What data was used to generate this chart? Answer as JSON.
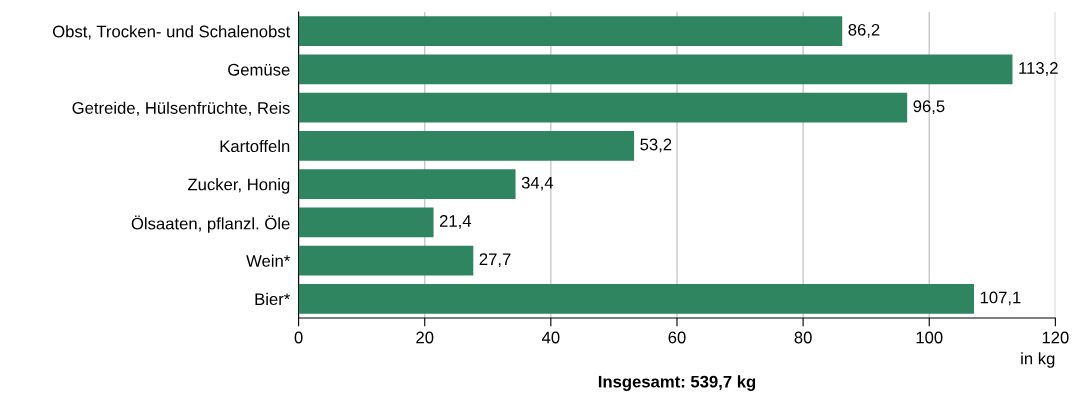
{
  "chart_data": {
    "type": "bar",
    "orientation": "horizontal",
    "categories": [
      "Obst, Trocken- und Schalenobst",
      "Gemüse",
      "Getreide, Hülsenfrüchte, Reis",
      "Kartoffeln",
      "Zucker, Honig",
      "Ölsaaten, pflanzl. Öle",
      "Wein*",
      "Bier*"
    ],
    "values": [
      86.2,
      113.2,
      96.5,
      53.2,
      34.4,
      21.4,
      27.7,
      107.1
    ],
    "value_labels": [
      "86,2",
      "113,2",
      "96,5",
      "53,2",
      "34,4",
      "21,4",
      "27,7",
      "107,1"
    ],
    "color": "#2e8560",
    "xlim": [
      0,
      120
    ],
    "xticks": [
      0,
      20,
      40,
      60,
      80,
      100,
      120
    ],
    "xlabel": "in kg",
    "grid": "x",
    "annotations": [
      "Insgesamt: 539,7 kg"
    ]
  }
}
